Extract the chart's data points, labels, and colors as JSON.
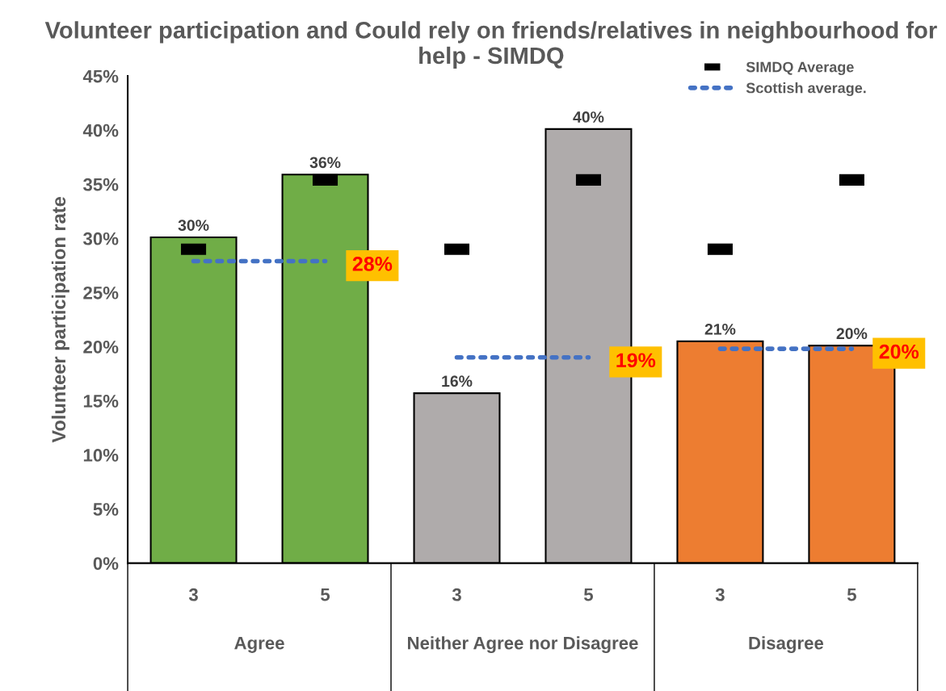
{
  "chart_data": {
    "type": "bar",
    "title": "Volunteer participation and Could rely on friends/relatives in neighbourhood for help - SIMDQ",
    "ylabel": "Volunteer participation rate",
    "categories": [
      "3",
      "5",
      "3",
      "5",
      "3",
      "5"
    ],
    "annotations": [
      "Agree",
      "Neither Agree nor Disagree",
      "Disagree"
    ],
    "ylim": [
      0,
      45
    ],
    "yticks": [
      {
        "value": 0,
        "label": "0%"
      },
      {
        "value": 5,
        "label": "5%"
      },
      {
        "value": 10,
        "label": "10%"
      },
      {
        "value": 15,
        "label": "15%"
      },
      {
        "value": 20,
        "label": "20%"
      },
      {
        "value": 25,
        "label": "25%"
      },
      {
        "value": 30,
        "label": "30%"
      },
      {
        "value": 35,
        "label": "35%"
      },
      {
        "value": 40,
        "label": "40%"
      },
      {
        "value": 45,
        "label": "45%"
      }
    ],
    "grid": false,
    "legend": "top right",
    "series": [
      {
        "colors": [
          "#70ad47",
          "#70ad47",
          "#afabab",
          "#afabab",
          "#ed7d31",
          "#ed7d31"
        ],
        "values": [
          30.1,
          35.9,
          15.7,
          40.1,
          20.5,
          20.1
        ],
        "value_labels": [
          "30%",
          "36%",
          "16%",
          "40%",
          "21%",
          "20%"
        ]
      },
      {
        "type": "scatter",
        "name": "SIMDQ Average",
        "color": "#000000",
        "values": [
          29.0,
          35.4,
          29.0,
          35.4,
          29.0,
          35.4
        ]
      },
      {
        "type": "line",
        "name": "Scottish average.",
        "color": "#4472c4",
        "line_style": "dotted",
        "values": [
          27.9,
          27.9,
          null,
          null,
          null,
          null
        ],
        "value_labels": [
          null,
          "28%",
          null,
          null,
          null,
          null
        ]
      },
      {
        "type": "line",
        "color": "#4472c4",
        "line_style": "dotted",
        "values": [
          null,
          null,
          19.0,
          19.0,
          null,
          null
        ],
        "value_labels": [
          null,
          null,
          null,
          "19%",
          null,
          null
        ]
      },
      {
        "type": "line",
        "color": "#4472c4",
        "line_style": "dotted",
        "values": [
          null,
          null,
          null,
          null,
          19.8,
          19.8
        ],
        "value_labels": [
          null,
          null,
          null,
          null,
          null,
          "20%"
        ]
      }
    ]
  }
}
